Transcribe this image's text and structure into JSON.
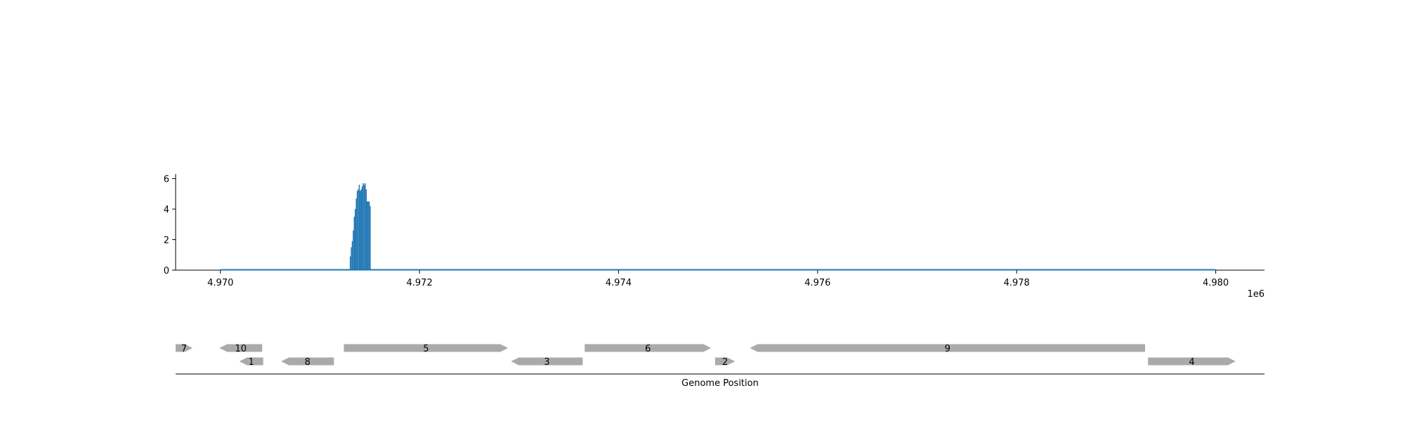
{
  "chart_data": [
    {
      "type": "area",
      "title": "",
      "xlabel": "",
      "ylabel": "",
      "x_offset_label": "1e6",
      "xlim": [
        4.96955,
        4.98049
      ],
      "ylim": [
        0,
        6.3
      ],
      "x_ticks": [
        4.97,
        4.972,
        4.974,
        4.976,
        4.978,
        4.98
      ],
      "x_tick_labels": [
        "4.970",
        "4.972",
        "4.974",
        "4.976",
        "4.978",
        "4.980"
      ],
      "y_ticks": [
        0,
        2,
        4,
        6
      ],
      "y_tick_labels": [
        "0",
        "2",
        "4",
        "6"
      ],
      "grid": false,
      "color": "#1f77b4",
      "baseline_x": [
        4.97,
        4.98
      ],
      "x": [
        4.9713,
        4.97131,
        4.97132,
        4.97133,
        4.97134,
        4.97135,
        4.97136,
        4.97137,
        4.97138,
        4.97139,
        4.9714,
        4.97141,
        4.97142,
        4.97143,
        4.97144,
        4.97145,
        4.97146,
        4.97147,
        4.97148,
        4.97149,
        4.9715
      ],
      "y": [
        0.9,
        1.5,
        1.9,
        2.6,
        3.5,
        4.0,
        4.7,
        5.2,
        5.3,
        5.6,
        5.2,
        5.3,
        5.5,
        5.7,
        5.6,
        5.7,
        5.3,
        4.5,
        4.5,
        4.5,
        4.2
      ]
    },
    {
      "type": "gene-track",
      "xlabel": "Genome Position",
      "color": "#aaaaaa",
      "genes": [
        {
          "label": "7",
          "start": 4.96955,
          "end": 4.96972,
          "strand": "+",
          "row": 0
        },
        {
          "label": "10",
          "start": 4.96999,
          "end": 4.97042,
          "strand": "-",
          "row": 0
        },
        {
          "label": "5",
          "start": 4.97124,
          "end": 4.97289,
          "strand": "+",
          "row": 0
        },
        {
          "label": "6",
          "start": 4.97366,
          "end": 4.97493,
          "strand": "+",
          "row": 0
        },
        {
          "label": "9",
          "start": 4.97532,
          "end": 4.97929,
          "strand": "-",
          "row": 0
        },
        {
          "label": "1",
          "start": 4.97019,
          "end": 4.97043,
          "strand": "-",
          "row": 1
        },
        {
          "label": "8",
          "start": 4.97061,
          "end": 4.97114,
          "strand": "-",
          "row": 1
        },
        {
          "label": "3",
          "start": 4.97292,
          "end": 4.97364,
          "strand": "-",
          "row": 1
        },
        {
          "label": "2",
          "start": 4.97497,
          "end": 4.97517,
          "strand": "+",
          "row": 1
        },
        {
          "label": "4",
          "start": 4.97932,
          "end": 4.9802,
          "strand": "+",
          "row": 1
        }
      ]
    }
  ]
}
